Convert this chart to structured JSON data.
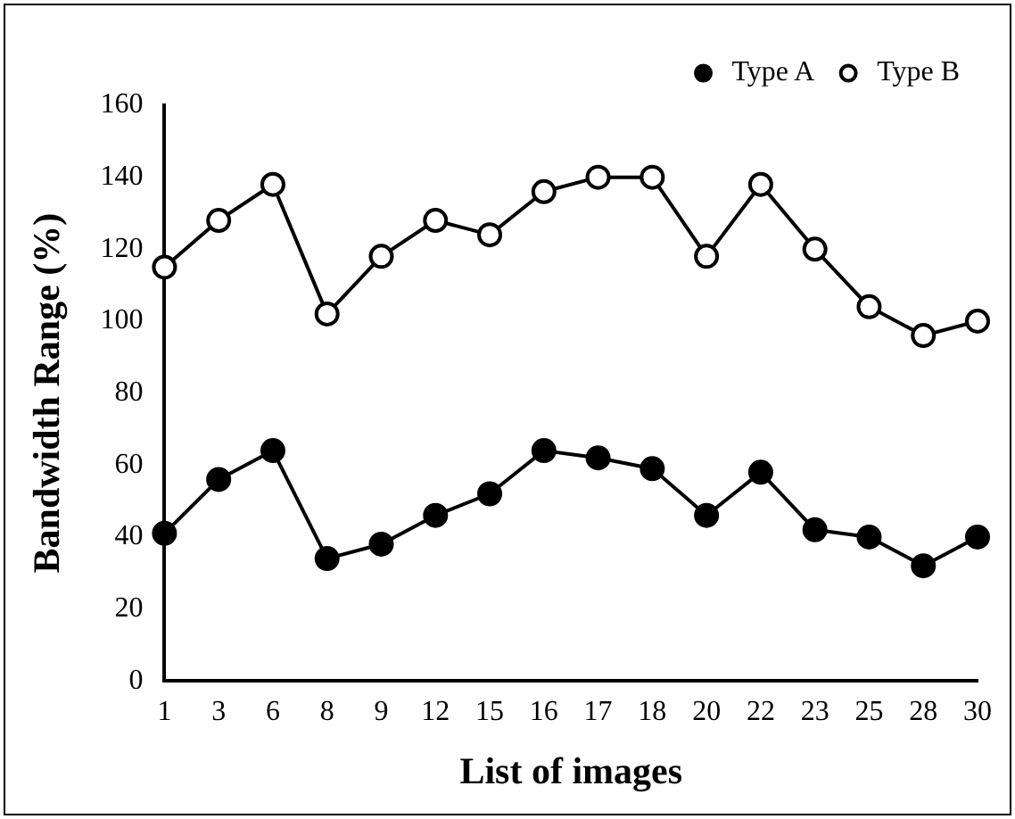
{
  "chart_data": {
    "type": "line",
    "xlabel": "List of images",
    "ylabel": "Bandwidth Range (%)",
    "categories": [
      "1",
      "3",
      "6",
      "8",
      "9",
      "12",
      "15",
      "16",
      "17",
      "18",
      "20",
      "22",
      "23",
      "25",
      "28",
      "30"
    ],
    "series": [
      {
        "name": "Type A",
        "color": "#000000",
        "marker": "circle",
        "values": [
          41,
          56,
          64,
          34,
          38,
          46,
          52,
          64,
          62,
          59,
          46,
          58,
          42,
          40,
          32,
          40
        ]
      },
      {
        "name": "Type B",
        "color": "#000000",
        "marker": "circle",
        "values": [
          115,
          128,
          138,
          102,
          118,
          128,
          124,
          136,
          140,
          140,
          118,
          138,
          120,
          104,
          96,
          100
        ]
      }
    ],
    "ylim": [
      0,
      160
    ],
    "yticks": [
      0,
      20,
      40,
      60,
      80,
      100,
      120,
      140,
      160
    ],
    "grid": false,
    "legend": "top right",
    "line_style": "solid"
  }
}
